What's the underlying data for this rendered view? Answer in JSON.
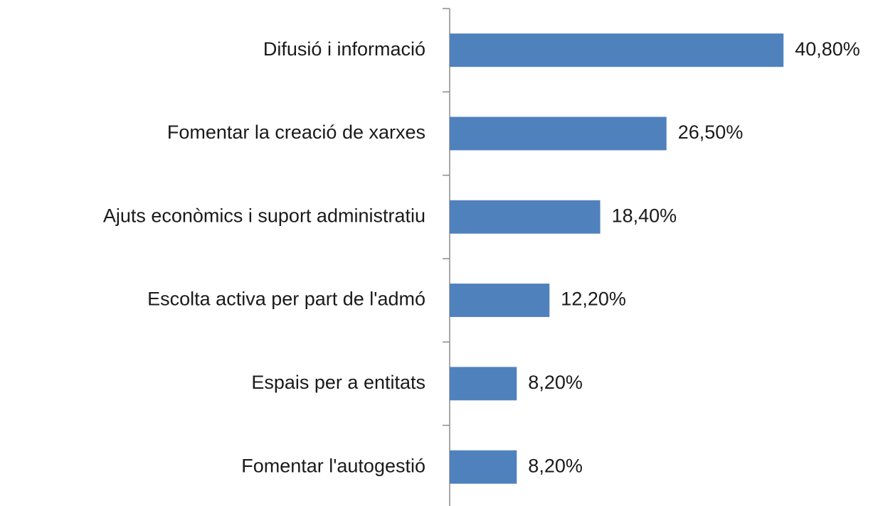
{
  "chart_data": {
    "type": "barh",
    "categories": [
      "Difusió i informació",
      "Fomentar la creació de xarxes",
      "Ajuts econòmics i suport administratiu",
      "Escolta activa per part de l'admó",
      "Espais per a entitats",
      "Fomentar l'autogestió"
    ],
    "values": [
      40.8,
      26.5,
      18.4,
      12.2,
      8.2,
      8.2
    ],
    "value_labels": [
      "40,80%",
      "26,50%",
      "18,40%",
      "12,20%",
      "8,20%",
      "8,20%"
    ],
    "color": "#4f81bd"
  }
}
